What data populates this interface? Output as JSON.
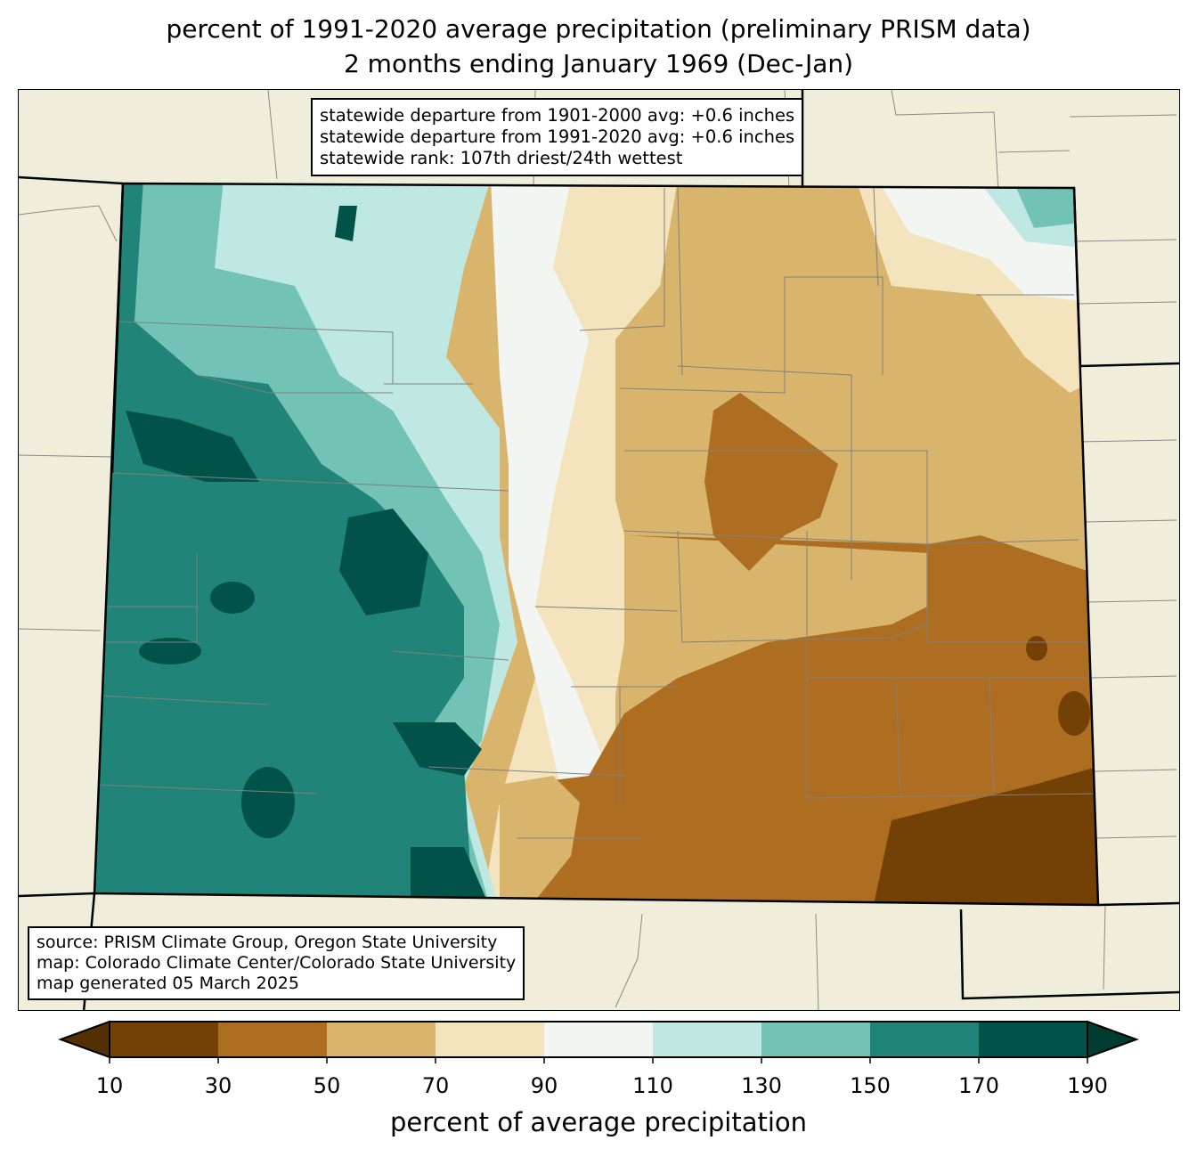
{
  "title": {
    "line1": "percent of 1991-2020 average precipitation (preliminary PRISM data)",
    "line2": "2 months ending January 1969 (Dec-Jan)"
  },
  "stats": {
    "line1": "statewide departure from 1901-2000 avg: +0.6 inches",
    "line2": "statewide departure from 1991-2020 avg: +0.6 inches",
    "line3": "statewide rank: 107th driest/24th wettest"
  },
  "source": {
    "line1": "source: PRISM Climate Group, Oregon State University",
    "line2": "map: Colorado Climate Center/Colorado State University",
    "line3": "map generated 05 March 2025"
  },
  "colorbar": {
    "label": "percent of average precipitation",
    "ticks": [
      "10",
      "30",
      "50",
      "70",
      "90",
      "110",
      "130",
      "150",
      "170",
      "190"
    ],
    "under_color": "#543005",
    "over_color": "#003c30",
    "colors": [
      "#734105",
      "#ad6e21",
      "#d9b46c",
      "#f3e4bd",
      "#f3f5f3",
      "#c0e8e3",
      "#72c2b6",
      "#218478",
      "#01534a"
    ]
  },
  "colors": {
    "land": "#f0eedb",
    "state_border": "#000000",
    "county_border": "#808080"
  }
}
